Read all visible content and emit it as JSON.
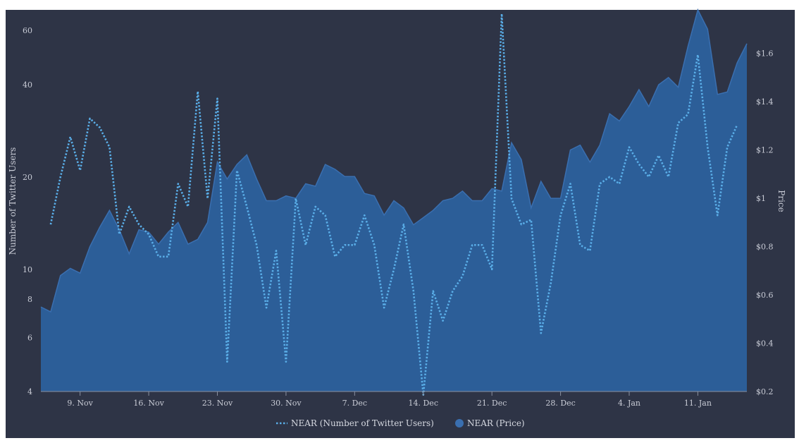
{
  "chart_data": {
    "type": "area+line",
    "title": "",
    "xlabel": "",
    "colors": {
      "background": "#2e3446",
      "price_fill": "#2c5e98",
      "price_stroke": "#3a6fb0",
      "users_line": "#5aaee8"
    },
    "x_start_day": 0,
    "x_ticks": [
      {
        "day": 4,
        "label": "9. Nov"
      },
      {
        "day": 11,
        "label": "16. Nov"
      },
      {
        "day": 18,
        "label": "23. Nov"
      },
      {
        "day": 25,
        "label": "30. Nov"
      },
      {
        "day": 32,
        "label": "7. Dec"
      },
      {
        "day": 39,
        "label": "14. Dec"
      },
      {
        "day": 46,
        "label": "21. Dec"
      },
      {
        "day": 53,
        "label": "28. Dec"
      },
      {
        "day": 60,
        "label": "4. Jan"
      },
      {
        "day": 67,
        "label": "11. Jan"
      }
    ],
    "left_axis": {
      "title": "Number of Twitter Users",
      "scale": "log",
      "range": [
        4,
        70
      ],
      "ticks": [
        4,
        6,
        8,
        10,
        20,
        40,
        60
      ]
    },
    "right_axis": {
      "title": "Price",
      "scale": "linear",
      "range": [
        0.2,
        1.78
      ],
      "ticks": [
        {
          "value": 0.2,
          "label": "$0.2"
        },
        {
          "value": 0.4,
          "label": "$0.4"
        },
        {
          "value": 0.6,
          "label": "$0.6"
        },
        {
          "value": 0.8,
          "label": "$0.8"
        },
        {
          "value": 1.0,
          "label": "$1"
        },
        {
          "value": 1.2,
          "label": "$1.2"
        },
        {
          "value": 1.4,
          "label": "$1.4"
        },
        {
          "value": 1.6,
          "label": "$1.6"
        }
      ]
    },
    "series": [
      {
        "name": "NEAR (Price)",
        "type": "area",
        "axis": "right",
        "values": [
          0.55,
          0.53,
          0.68,
          0.71,
          0.69,
          0.8,
          0.88,
          0.95,
          0.87,
          0.77,
          0.87,
          0.86,
          0.81,
          0.86,
          0.9,
          0.81,
          0.83,
          0.9,
          1.15,
          1.08,
          1.14,
          1.18,
          1.08,
          0.99,
          0.99,
          1.01,
          1.0,
          1.06,
          1.05,
          1.14,
          1.12,
          1.09,
          1.09,
          1.02,
          1.01,
          0.93,
          0.99,
          0.96,
          0.89,
          0.92,
          0.95,
          0.99,
          1.0,
          1.03,
          0.99,
          0.99,
          1.04,
          1.03,
          1.23,
          1.16,
          0.96,
          1.07,
          1.0,
          1.0,
          1.2,
          1.22,
          1.15,
          1.22,
          1.35,
          1.32,
          1.38,
          1.45,
          1.38,
          1.47,
          1.5,
          1.46,
          1.63,
          1.78,
          1.7,
          1.43,
          1.44,
          1.56,
          1.64
        ]
      },
      {
        "name": "NEAR (Number of Twitter Users)",
        "type": "line",
        "dash": "dotted",
        "axis": "left",
        "x_start": 1,
        "values": [
          14,
          20,
          27,
          21,
          31,
          29,
          25,
          13,
          16,
          14,
          13,
          11,
          11,
          19,
          16,
          38,
          17,
          36,
          5,
          21,
          16,
          12,
          7.5,
          11.5,
          5,
          17,
          12,
          16,
          15,
          11,
          12,
          12,
          15,
          12,
          7.5,
          10,
          14,
          8.5,
          3.9,
          8.5,
          6.8,
          8.5,
          9.5,
          12,
          12,
          10,
          68,
          17,
          14,
          14.5,
          6.2,
          9,
          15,
          19,
          12,
          11.5,
          19,
          20,
          19,
          25,
          22,
          20,
          23.5,
          20,
          30,
          32,
          50,
          25,
          15,
          25,
          29.5
        ]
      }
    ],
    "legend": [
      {
        "label": "NEAR (Number of Twitter Users)",
        "kind": "dotted-line"
      },
      {
        "label": "NEAR (Price)",
        "kind": "dot"
      }
    ],
    "legend_position": "bottom-center"
  }
}
